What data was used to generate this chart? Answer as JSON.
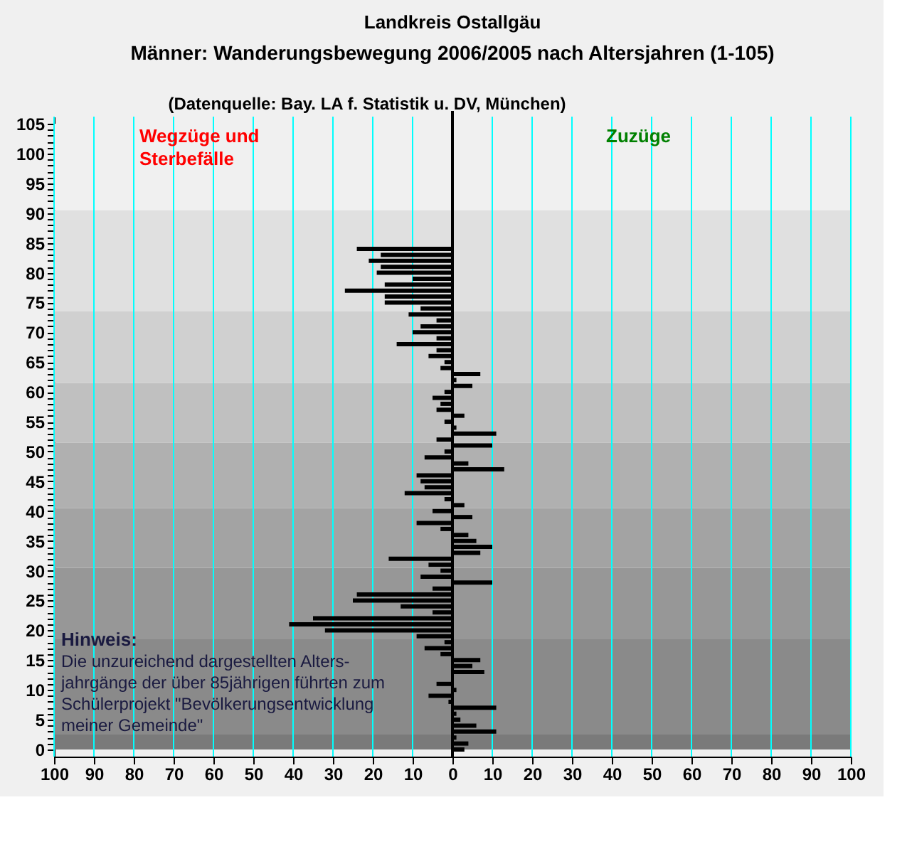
{
  "chart_data": {
    "type": "bar",
    "orientation": "horizontal",
    "title": "Landkreis Ostallgäu",
    "subtitle": "Männer: Wanderungsbewegung 2006/2005 nach Altersjahren (1-105)",
    "annotations": [
      "(Datenquelle: Bay. LA f. Statistik u. DV, München)",
      "Wegzüge und\nSterbefälle",
      "Zuzüge",
      "Hinweis:",
      "Die unzureichend dargestellten Alters-\njahrgänge der über 85jährigen führten zum\nSchülerprojekt \"Bevölkerungsentwicklung\nmeiner Gemeinde\""
    ],
    "x": [
      0,
      1,
      2,
      3,
      4,
      5,
      6,
      7,
      8,
      9,
      10,
      11,
      12,
      13,
      14,
      15,
      16,
      17,
      18,
      19,
      20,
      21,
      22,
      23,
      24,
      25,
      26,
      27,
      28,
      29,
      30,
      31,
      32,
      33,
      34,
      35,
      36,
      37,
      38,
      39,
      40,
      41,
      42,
      43,
      44,
      45,
      46,
      47,
      48,
      49,
      50,
      51,
      52,
      53,
      54,
      55,
      56,
      57,
      58,
      59,
      60,
      61,
      62,
      63,
      64,
      65,
      66,
      67,
      68,
      69,
      70,
      71,
      72,
      73,
      74,
      75,
      76,
      77,
      78,
      79,
      80,
      81,
      82,
      83,
      84
    ],
    "values": [
      3,
      4,
      1,
      11,
      6,
      2,
      1,
      11,
      -1,
      -6,
      1,
      -4,
      0,
      8,
      5,
      7,
      -3,
      -7,
      -2,
      -9,
      -32,
      -41,
      -35,
      -5,
      -13,
      -25,
      -24,
      -5,
      10,
      -8,
      -3,
      -6,
      -16,
      7,
      10,
      6,
      4,
      -3,
      -9,
      5,
      -5,
      3,
      -2,
      -12,
      -7,
      -8,
      -9,
      13,
      4,
      -7,
      -2,
      10,
      -4,
      11,
      1,
      -2,
      3,
      -4,
      -3,
      -5,
      -2,
      5,
      1,
      7,
      -3,
      -2,
      -6,
      -4,
      -14,
      -4,
      -10,
      -8,
      -4,
      -11,
      -8,
      -17,
      -17,
      -27,
      -17,
      -10,
      -19,
      -18,
      -21,
      -18,
      -24
    ],
    "color": "#000000",
    "xlim": [
      -100,
      100
    ],
    "xticks": [
      {
        "value": -100,
        "label": "100"
      },
      {
        "value": -90,
        "label": "90"
      },
      {
        "value": -80,
        "label": "80"
      },
      {
        "value": -70,
        "label": "70"
      },
      {
        "value": -60,
        "label": "60"
      },
      {
        "value": -50,
        "label": "50"
      },
      {
        "value": -40,
        "label": "40"
      },
      {
        "value": -30,
        "label": "30"
      },
      {
        "value": -20,
        "label": "20"
      },
      {
        "value": -10,
        "label": "10"
      },
      0,
      10,
      20,
      30,
      40,
      50,
      60,
      70,
      80,
      90,
      100
    ],
    "ylim": [
      0,
      105
    ],
    "yticks": [
      0,
      {
        "value": 1,
        "label": null
      },
      {
        "value": 2,
        "label": null
      },
      {
        "value": 3,
        "label": null
      },
      {
        "value": 4,
        "label": null
      },
      5,
      {
        "value": 6,
        "label": null
      },
      {
        "value": 7,
        "label": null
      },
      {
        "value": 8,
        "label": null
      },
      {
        "value": 9,
        "label": null
      },
      10,
      {
        "value": 11,
        "label": null
      },
      {
        "value": 12,
        "label": null
      },
      {
        "value": 13,
        "label": null
      },
      {
        "value": 14,
        "label": null
      },
      15,
      {
        "value": 16,
        "label": null
      },
      {
        "value": 17,
        "label": null
      },
      {
        "value": 18,
        "label": null
      },
      {
        "value": 19,
        "label": null
      },
      20,
      {
        "value": 21,
        "label": null
      },
      {
        "value": 22,
        "label": null
      },
      {
        "value": 23,
        "label": null
      },
      {
        "value": 24,
        "label": null
      },
      25,
      {
        "value": 26,
        "label": null
      },
      {
        "value": 27,
        "label": null
      },
      {
        "value": 28,
        "label": null
      },
      {
        "value": 29,
        "label": null
      },
      30,
      {
        "value": 31,
        "label": null
      },
      {
        "value": 32,
        "label": null
      },
      {
        "value": 33,
        "label": null
      },
      {
        "value": 34,
        "label": null
      },
      35,
      {
        "value": 36,
        "label": null
      },
      {
        "value": 37,
        "label": null
      },
      {
        "value": 38,
        "label": null
      },
      {
        "value": 39,
        "label": null
      },
      40,
      {
        "value": 41,
        "label": null
      },
      {
        "value": 42,
        "label": null
      },
      {
        "value": 43,
        "label": null
      },
      {
        "value": 44,
        "label": null
      },
      45,
      {
        "value": 46,
        "label": null
      },
      {
        "value": 47,
        "label": null
      },
      {
        "value": 48,
        "label": null
      },
      {
        "value": 49,
        "label": null
      },
      50,
      {
        "value": 51,
        "label": null
      },
      {
        "value": 52,
        "label": null
      },
      {
        "value": 53,
        "label": null
      },
      {
        "value": 54,
        "label": null
      },
      55,
      {
        "value": 56,
        "label": null
      },
      {
        "value": 57,
        "label": null
      },
      {
        "value": 58,
        "label": null
      },
      {
        "value": 59,
        "label": null
      },
      60,
      {
        "value": 61,
        "label": null
      },
      {
        "value": 62,
        "label": null
      },
      {
        "value": 63,
        "label": null
      },
      {
        "value": 64,
        "label": null
      },
      65,
      {
        "value": 66,
        "label": null
      },
      {
        "value": 67,
        "label": null
      },
      {
        "value": 68,
        "label": null
      },
      {
        "value": 69,
        "label": null
      },
      70,
      {
        "value": 71,
        "label": null
      },
      {
        "value": 72,
        "label": null
      },
      {
        "value": 73,
        "label": null
      },
      {
        "value": 74,
        "label": null
      },
      75,
      {
        "value": 76,
        "label": null
      },
      {
        "value": 77,
        "label": null
      },
      {
        "value": 78,
        "label": null
      },
      {
        "value": 79,
        "label": null
      },
      80,
      {
        "value": 81,
        "label": null
      },
      {
        "value": 82,
        "label": null
      },
      {
        "value": 83,
        "label": null
      },
      {
        "value": 84,
        "label": null
      },
      85,
      {
        "value": 86,
        "label": null
      },
      {
        "value": 87,
        "label": null
      },
      {
        "value": 88,
        "label": null
      },
      {
        "value": 89,
        "label": null
      },
      90,
      {
        "value": 91,
        "label": null
      },
      {
        "value": 92,
        "label": null
      },
      {
        "value": 93,
        "label": null
      },
      {
        "value": 94,
        "label": null
      },
      95,
      {
        "value": 96,
        "label": null
      },
      {
        "value": 97,
        "label": null
      },
      {
        "value": 98,
        "label": null
      },
      {
        "value": 99,
        "label": null
      },
      100,
      {
        "value": 101,
        "label": null
      },
      {
        "value": 102,
        "label": null
      },
      {
        "value": 103,
        "label": null
      },
      {
        "value": 104,
        "label": null
      },
      105
    ],
    "grid": "x",
    "ref_lines": [
      {
        "axis": "x",
        "value": 0,
        "color": "#000000"
      }
    ],
    "bands": [
      {
        "axis": "y",
        "from": 0,
        "to": 2.5,
        "color": "#7a7a7a"
      },
      {
        "axis": "y",
        "from": 2.5,
        "to": 18.5,
        "color": "#8a8a8a"
      },
      {
        "axis": "y",
        "from": 18.5,
        "to": 30.5,
        "color": "#979797"
      },
      {
        "axis": "y",
        "from": 30.5,
        "to": 40.5,
        "color": "#a3a3a3"
      },
      {
        "axis": "y",
        "from": 40.5,
        "to": 51.5,
        "color": "#b0b0b0"
      },
      {
        "axis": "y",
        "from": 51.5,
        "to": 61.5,
        "color": "#c0c0c0"
      },
      {
        "axis": "y",
        "from": 61.5,
        "to": 73.5,
        "color": "#d0d0d0"
      },
      {
        "axis": "y",
        "from": 73.5,
        "to": 90.5,
        "color": "#e0e0e0"
      },
      {
        "axis": "y",
        "from": 90.5,
        "to": 105,
        "color": "#f0f0f0"
      }
    ]
  }
}
